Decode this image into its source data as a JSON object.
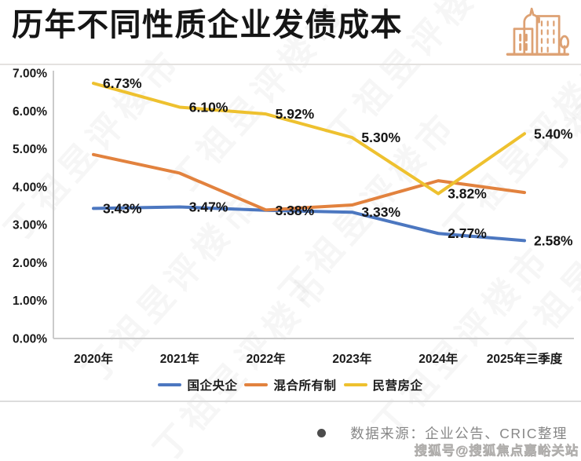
{
  "header": {
    "title": "历年不同性质企业发债成本",
    "icon": "buildings-icon",
    "icon_color": "#DDA173"
  },
  "chart_data": {
    "type": "line",
    "title": "历年不同性质企业发债成本",
    "categories": [
      "2020年",
      "2021年",
      "2022年",
      "2023年",
      "2024年",
      "2025年三季度"
    ],
    "series": [
      {
        "name": "国企央企",
        "color": "#4C77C0",
        "values": [
          3.43,
          3.47,
          3.38,
          3.33,
          2.77,
          2.58
        ],
        "labels": [
          "3.43%",
          "3.47%",
          "3.38%",
          "3.33%",
          "2.77%",
          "2.58%"
        ]
      },
      {
        "name": "混合所有制",
        "color": "#E2823E",
        "values": [
          4.85,
          4.36,
          3.39,
          3.52,
          4.16,
          3.85
        ],
        "labels": null
      },
      {
        "name": "民营房企",
        "color": "#EEC12F",
        "values": [
          6.73,
          6.1,
          5.92,
          5.3,
          3.82,
          5.4
        ],
        "labels": [
          "6.73%",
          "6.10%",
          "5.92%",
          "5.30%",
          "3.82%",
          "5.40%"
        ]
      }
    ],
    "y_axis": {
      "min": 0,
      "max": 7,
      "step": 1,
      "ticks": [
        "7.00%",
        "6.00%",
        "5.00%",
        "4.00%",
        "3.00%",
        "2.00%",
        "1.00%",
        "0.00%"
      ]
    },
    "xlabel": "",
    "ylabel": "",
    "grid": false,
    "legend_position": "bottom"
  },
  "footer": {
    "source_label": "数据来源：企业公告、CRIC整理",
    "sohu_watermark": "搜狐号@搜狐焦点嘉峪关站"
  },
  "watermark_text": "丁祖昱评楼市"
}
